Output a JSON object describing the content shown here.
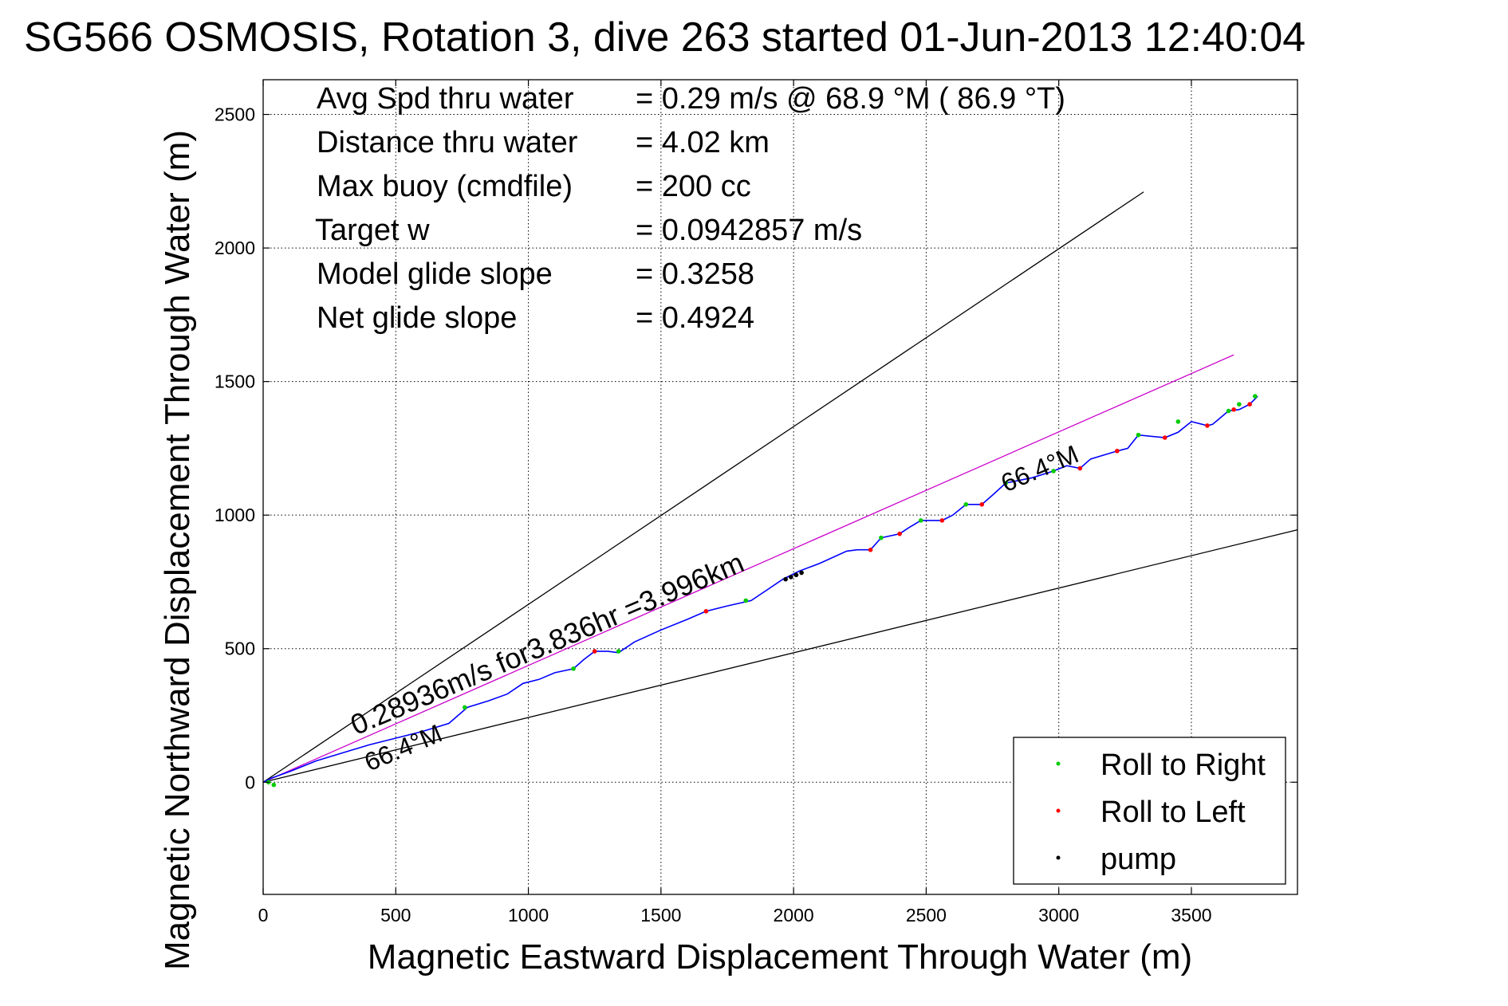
{
  "chart_data": {
    "type": "line",
    "title": "SG566 OSMOSIS, Rotation 3, dive 263 started 01-Jun-2013 12:40:04",
    "xlabel": "Magnetic Eastward Displacement Through Water (m)",
    "ylabel": "Magnetic Northward Displacement Through Water (m)",
    "xlim": [
      0,
      3900
    ],
    "ylim": [
      -420,
      2630
    ],
    "x_ticks": [
      0,
      500,
      1000,
      1500,
      2000,
      2500,
      3000,
      3500
    ],
    "y_ticks": [
      0,
      500,
      1000,
      1500,
      2000,
      2500
    ],
    "grid": true,
    "stats": [
      {
        "label": "Avg Spd thru water",
        "value": "=  0.29 m/s @  68.9 °M ( 86.9 °T)"
      },
      {
        "label": "Distance thru water",
        "value": "=  4.02 km"
      },
      {
        "label": "Max buoy (cmdfile)",
        "value": "= 200 cc"
      },
      {
        "label": "Target w",
        "value": "= 0.0942857 m/s"
      },
      {
        "label": "Model glide slope",
        "value": "= 0.3258"
      },
      {
        "label": "Net glide slope",
        "value": "= 0.4924"
      }
    ],
    "annotations": [
      {
        "text": "0.28936m/s for3.836hr =3.996km",
        "x": 350,
        "y": 175,
        "angle_deg": 23
      },
      {
        "text": "66.4°M",
        "x": 400,
        "y": 40,
        "angle_deg": 23
      },
      {
        "text": "66.4°M",
        "x": 2800,
        "y": 1085,
        "angle_deg": 23
      }
    ],
    "reference_lines": [
      {
        "name": "upper-bound",
        "color": "#000000",
        "x": [
          0,
          3320
        ],
        "y": [
          0,
          2210
        ]
      },
      {
        "name": "lower-bound",
        "color": "#000000",
        "x": [
          0,
          3900
        ],
        "y": [
          0,
          945
        ]
      },
      {
        "name": "net-heading",
        "color": "#cc00cc",
        "x": [
          0,
          3660
        ],
        "y": [
          0,
          1600
        ]
      }
    ],
    "track": {
      "color": "#0000ff",
      "x": [
        0,
        30,
        100,
        200,
        300,
        400,
        500,
        600,
        700,
        770,
        850,
        920,
        980,
        1040,
        1100,
        1170,
        1210,
        1250,
        1300,
        1340,
        1400,
        1500,
        1600,
        1670,
        1750,
        1840,
        1900,
        1960,
        2020,
        2100,
        2200,
        2240,
        2290,
        2330,
        2400,
        2430,
        2480,
        2560,
        2600,
        2650,
        2710,
        2750,
        2800,
        2900,
        2980,
        3030,
        3080,
        3120,
        3220,
        3260,
        3300,
        3400,
        3450,
        3500,
        3560,
        3580,
        3640,
        3680,
        3720,
        3750
      ],
      "y": [
        0,
        15,
        40,
        80,
        110,
        140,
        165,
        190,
        220,
        280,
        305,
        330,
        370,
        385,
        410,
        425,
        460,
        490,
        490,
        485,
        525,
        570,
        610,
        640,
        660,
        680,
        720,
        760,
        790,
        820,
        865,
        870,
        870,
        915,
        930,
        950,
        980,
        980,
        1000,
        1040,
        1040,
        1075,
        1120,
        1140,
        1165,
        1185,
        1175,
        1210,
        1240,
        1250,
        1300,
        1290,
        1310,
        1350,
        1335,
        1340,
        1390,
        1395,
        1415,
        1445
      ]
    },
    "series": [
      {
        "name": "Roll to Right",
        "color": "#00cc00",
        "x": [
          20,
          40,
          760,
          1170,
          1340,
          1820,
          2330,
          2480,
          2650,
          2800,
          2980,
          3300,
          3450,
          3640,
          3680,
          3740
        ],
        "y": [
          0,
          -10,
          280,
          425,
          490,
          680,
          915,
          980,
          1040,
          1120,
          1165,
          1300,
          1350,
          1390,
          1415,
          1445
        ]
      },
      {
        "name": "Roll to Left",
        "color": "#ff0000",
        "x": [
          1250,
          1670,
          2290,
          2400,
          2560,
          2710,
          3080,
          3220,
          3400,
          3560,
          3660,
          3720
        ],
        "y": [
          490,
          640,
          870,
          930,
          980,
          1040,
          1175,
          1240,
          1290,
          1335,
          1395,
          1415
        ]
      },
      {
        "name": "pump",
        "color": "#000000",
        "x": [
          1970,
          1990,
          2010,
          2030
        ],
        "y": [
          760,
          768,
          776,
          784
        ]
      }
    ],
    "legend_position": "bottom-right"
  }
}
